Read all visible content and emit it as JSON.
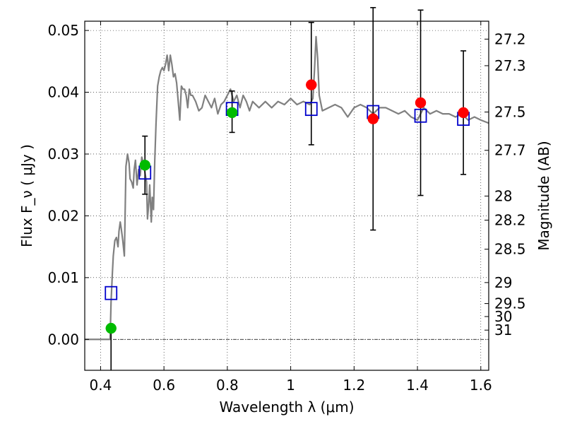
{
  "chart_data": {
    "type": "scatter",
    "title": "",
    "xlabel": "Wavelength  λ (μm)",
    "ylabel": "Flux  F_ν  ( μJy )",
    "y2label": "Magnitude (AB)",
    "xlim": [
      0.35,
      1.625
    ],
    "ylim": [
      -0.005,
      0.0515
    ],
    "grid": true,
    "x_ticks": [
      "0.4",
      "0.6",
      "0.8",
      "1",
      "1.2",
      "1.4",
      "1.6"
    ],
    "x_tick_values": [
      0.4,
      0.6,
      0.8,
      1.0,
      1.2,
      1.4,
      1.6
    ],
    "y_ticks": [
      "0.00",
      "0.01",
      "0.02",
      "0.03",
      "0.04",
      "0.05"
    ],
    "y_tick_values": [
      0.0,
      0.01,
      0.02,
      0.03,
      0.04,
      0.05
    ],
    "mag_ticks": [
      "27.2",
      "27.3",
      "27.5",
      "27.7",
      "28",
      "28.2",
      "28.5",
      "29",
      "29.5",
      "30",
      "31"
    ],
    "mag_tick_flux": [
      0.0486,
      0.0443,
      0.0368,
      0.0306,
      0.0232,
      0.0193,
      0.0146,
      0.0092,
      0.0058,
      0.0037,
      0.0015
    ],
    "series": [
      {
        "kind": "line",
        "color": "#808080",
        "x": [
          0.35,
          0.43,
          0.433,
          0.437,
          0.44,
          0.445,
          0.45,
          0.455,
          0.458,
          0.462,
          0.465,
          0.47,
          0.475,
          0.478,
          0.48,
          0.485,
          0.49,
          0.493,
          0.498,
          0.503,
          0.506,
          0.51,
          0.515,
          0.52,
          0.525,
          0.53,
          0.535,
          0.54,
          0.545,
          0.548,
          0.552,
          0.555,
          0.56,
          0.563,
          0.567,
          0.571,
          0.575,
          0.58,
          0.585,
          0.59,
          0.595,
          0.6,
          0.605,
          0.61,
          0.615,
          0.62,
          0.625,
          0.63,
          0.635,
          0.64,
          0.645,
          0.65,
          0.655,
          0.66,
          0.665,
          0.67,
          0.675,
          0.68,
          0.685,
          0.69,
          0.7,
          0.71,
          0.72,
          0.73,
          0.74,
          0.75,
          0.76,
          0.77,
          0.78,
          0.79,
          0.8,
          0.81,
          0.82,
          0.83,
          0.84,
          0.85,
          0.86,
          0.87,
          0.88,
          0.89,
          0.9,
          0.92,
          0.94,
          0.96,
          0.98,
          1.0,
          1.02,
          1.04,
          1.06,
          1.07,
          1.075,
          1.08,
          1.085,
          1.09,
          1.1,
          1.12,
          1.14,
          1.16,
          1.18,
          1.2,
          1.22,
          1.24,
          1.26,
          1.28,
          1.3,
          1.32,
          1.34,
          1.36,
          1.38,
          1.4,
          1.42,
          1.44,
          1.46,
          1.48,
          1.5,
          1.52,
          1.54,
          1.56,
          1.58,
          1.6,
          1.625
        ],
        "y": [
          0.0,
          0.0,
          0.006,
          0.0105,
          0.0135,
          0.016,
          0.0165,
          0.015,
          0.0175,
          0.019,
          0.018,
          0.016,
          0.0135,
          0.022,
          0.028,
          0.03,
          0.0285,
          0.026,
          0.0255,
          0.0245,
          0.0275,
          0.029,
          0.025,
          0.0275,
          0.0265,
          0.0295,
          0.0285,
          0.027,
          0.0255,
          0.0195,
          0.022,
          0.025,
          0.019,
          0.023,
          0.021,
          0.029,
          0.035,
          0.041,
          0.0425,
          0.0435,
          0.044,
          0.0435,
          0.0445,
          0.046,
          0.0435,
          0.046,
          0.0445,
          0.0425,
          0.043,
          0.0415,
          0.0385,
          0.0355,
          0.041,
          0.0405,
          0.0405,
          0.0395,
          0.0375,
          0.0405,
          0.0395,
          0.0395,
          0.0385,
          0.037,
          0.0375,
          0.0395,
          0.0385,
          0.0375,
          0.039,
          0.0365,
          0.038,
          0.0385,
          0.0395,
          0.0405,
          0.0385,
          0.0395,
          0.0375,
          0.0395,
          0.0385,
          0.037,
          0.0385,
          0.038,
          0.0375,
          0.0385,
          0.0375,
          0.0385,
          0.038,
          0.039,
          0.038,
          0.0385,
          0.038,
          0.039,
          0.0435,
          0.049,
          0.0455,
          0.0395,
          0.037,
          0.0375,
          0.038,
          0.0375,
          0.036,
          0.0375,
          0.038,
          0.0375,
          0.0365,
          0.0375,
          0.0375,
          0.037,
          0.0365,
          0.037,
          0.036,
          0.0355,
          0.0375,
          0.0365,
          0.037,
          0.0365,
          0.0365,
          0.036,
          0.0365,
          0.0355,
          0.036,
          0.0355,
          0.035
        ]
      },
      {
        "kind": "marker",
        "marker": "square-open",
        "color": "#0000cc",
        "x": [
          0.433,
          0.54,
          0.815,
          1.065,
          1.26,
          1.41,
          1.545
        ],
        "y": [
          0.0075,
          0.027,
          0.0373,
          0.0373,
          0.0368,
          0.0362,
          0.0357
        ]
      },
      {
        "kind": "marker",
        "marker": "circle",
        "color": "#00bb00",
        "x": [
          0.433,
          0.54,
          0.815
        ],
        "y": [
          0.0018,
          0.0282,
          0.0367
        ],
        "yerr_low": [
          0.0068,
          0.0047,
          0.0032
        ],
        "yerr_high": [
          0.0,
          0.0047,
          0.0035
        ]
      },
      {
        "kind": "marker",
        "marker": "circle",
        "color": "#ff0000",
        "x": [
          1.065,
          1.26,
          1.41,
          1.545
        ],
        "y": [
          0.0412,
          0.0357,
          0.0383,
          0.0367
        ],
        "yerr_low": [
          0.0097,
          0.018,
          0.015,
          0.01
        ],
        "yerr_high": [
          0.0101,
          0.018,
          0.015,
          0.01
        ]
      }
    ]
  }
}
